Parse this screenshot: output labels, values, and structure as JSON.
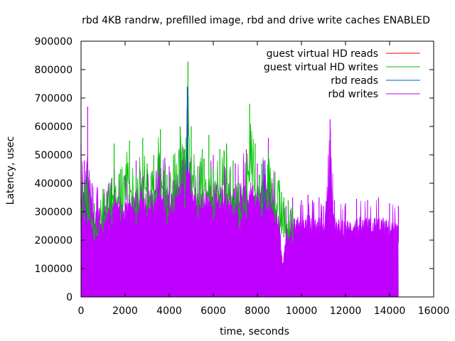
{
  "chart_data": {
    "type": "line",
    "title": "rbd 4KB randrw, prefilled image, rbd and drive write caches ENABLED",
    "xlabel": "time, seconds",
    "ylabel": "Latency, usec",
    "xlim": [
      0,
      16000
    ],
    "ylim": [
      0,
      900000
    ],
    "x_ticks": [
      "0",
      "2000",
      "4000",
      "6000",
      "8000",
      "10000",
      "12000",
      "14000",
      "16000"
    ],
    "y_ticks": [
      "0",
      "100000",
      "200000",
      "300000",
      "400000",
      "500000",
      "600000",
      "700000",
      "800000",
      "900000"
    ],
    "legend_position": "top-right",
    "grid": false,
    "data_end_x": 14400,
    "series": [
      {
        "name": "guest virtual HD reads",
        "color": "#ff0000",
        "style": "spiky-fill",
        "points": []
      },
      {
        "name": "guest virtual HD writes",
        "color": "#00c000",
        "style": "spiky-fill",
        "points": [
          [
            0,
            400000
          ],
          [
            300,
            440000
          ],
          [
            600,
            330000
          ],
          [
            1000,
            380000
          ],
          [
            1400,
            420000
          ],
          [
            1500,
            540000
          ],
          [
            1800,
            450000
          ],
          [
            2200,
            550000
          ],
          [
            2500,
            430000
          ],
          [
            2800,
            560000
          ],
          [
            3000,
            470000
          ],
          [
            3300,
            500000
          ],
          [
            3600,
            590000
          ],
          [
            3900,
            430000
          ],
          [
            4200,
            500000
          ],
          [
            4500,
            600000
          ],
          [
            4700,
            520000
          ],
          [
            4850,
            828000
          ],
          [
            5000,
            600000
          ],
          [
            5300,
            460000
          ],
          [
            5500,
            520000
          ],
          [
            5800,
            570000
          ],
          [
            6000,
            450000
          ],
          [
            6300,
            520000
          ],
          [
            6600,
            540000
          ],
          [
            6900,
            480000
          ],
          [
            7200,
            400000
          ],
          [
            7500,
            460000
          ],
          [
            7650,
            680000
          ],
          [
            7900,
            540000
          ],
          [
            8200,
            470000
          ],
          [
            8500,
            510000
          ],
          [
            8800,
            440000
          ],
          [
            9000,
            410000
          ],
          [
            9100,
            370000
          ],
          [
            9200,
            350000
          ],
          [
            9400,
            340000
          ],
          [
            9600,
            320000
          ]
        ]
      },
      {
        "name": "rbd reads",
        "color": "#0060ad",
        "style": "spiky-fill",
        "points": [
          [
            4820,
            740000
          ],
          [
            8300,
            480000
          ],
          [
            4840,
            735000
          ]
        ]
      },
      {
        "name": "rbd writes",
        "color": "#c000ff",
        "style": "spiky-fill",
        "points": [
          [
            0,
            540000
          ],
          [
            150,
            480000
          ],
          [
            300,
            670000
          ],
          [
            500,
            400000
          ],
          [
            1000,
            380000
          ],
          [
            1500,
            450000
          ],
          [
            2000,
            430000
          ],
          [
            2500,
            480000
          ],
          [
            3000,
            450000
          ],
          [
            3500,
            500000
          ],
          [
            3800,
            490000
          ],
          [
            4000,
            460000
          ],
          [
            4500,
            600000
          ],
          [
            4850,
            740000
          ],
          [
            5000,
            480000
          ],
          [
            5500,
            470000
          ],
          [
            6000,
            500000
          ],
          [
            6500,
            460000
          ],
          [
            7000,
            470000
          ],
          [
            7500,
            520000
          ],
          [
            8000,
            470000
          ],
          [
            8500,
            560000
          ],
          [
            9000,
            360000
          ],
          [
            9150,
            120000
          ],
          [
            9300,
            320000
          ],
          [
            9600,
            350000
          ],
          [
            10000,
            340000
          ],
          [
            10300,
            360000
          ],
          [
            10500,
            340000
          ],
          [
            10800,
            350000
          ],
          [
            11000,
            320000
          ],
          [
            11300,
            625000
          ],
          [
            11500,
            340000
          ],
          [
            12000,
            330000
          ],
          [
            12500,
            345000
          ],
          [
            13000,
            340000
          ],
          [
            13500,
            350000
          ],
          [
            14000,
            330000
          ],
          [
            14400,
            320000
          ]
        ]
      }
    ]
  }
}
